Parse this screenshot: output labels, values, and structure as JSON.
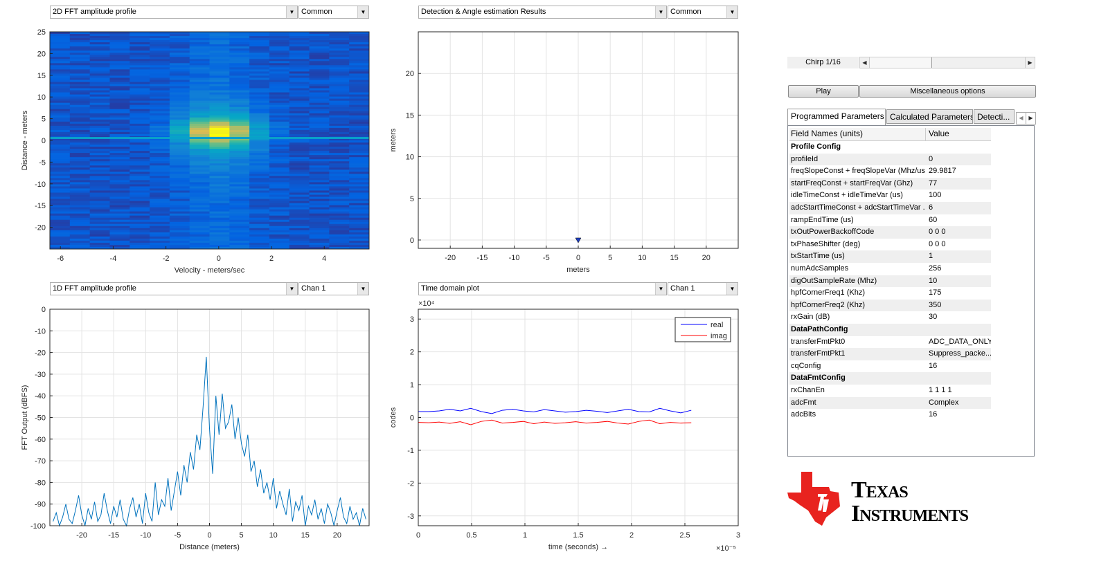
{
  "plots": {
    "p1": {
      "select": "2D FFT amplitude profile",
      "option": "Common"
    },
    "p2": {
      "select": "Detection & Angle estimation Results",
      "option": "Common"
    },
    "p3": {
      "select": "1D FFT amplitude profile",
      "option": "Chan 1"
    },
    "p4": {
      "select": "Time domain plot",
      "option": "Chan 1"
    }
  },
  "controls": {
    "chirp_label": "Chirp 1/16",
    "chirp_value": 1,
    "chirp_total": 16,
    "play": "Play",
    "misc": "Miscellaneous options"
  },
  "tabs": [
    "Programmed Parameters",
    "Calculated Parameters",
    "Detecti..."
  ],
  "table": {
    "headers": [
      "Field Names    (units)",
      "Value"
    ],
    "rows": [
      {
        "name": "Profile Config",
        "value": "",
        "section": true
      },
      {
        "name": "profileId",
        "value": "0"
      },
      {
        "name": "freqSlopeConst + freqSlopeVar (Mhz/us)",
        "value": "29.9817"
      },
      {
        "name": "startFreqConst + startFreqVar (Ghz)",
        "value": "77"
      },
      {
        "name": "idleTimeConst + idleTimeVar (us)",
        "value": "100"
      },
      {
        "name": "adcStartTimeConst + adcStartTimeVar ...",
        "value": "6"
      },
      {
        "name": "rampEndTime (us)",
        "value": "60"
      },
      {
        "name": "txOutPowerBackoffCode",
        "value": "0 0 0"
      },
      {
        "name": "txPhaseShifter (deg)",
        "value": "0 0 0"
      },
      {
        "name": "txStartTime (us)",
        "value": "1"
      },
      {
        "name": "numAdcSamples",
        "value": "256"
      },
      {
        "name": "digOutSampleRate (Mhz)",
        "value": "10"
      },
      {
        "name": "hpfCornerFreq1 (Khz)",
        "value": "175"
      },
      {
        "name": "hpfCornerFreq2 (Khz)",
        "value": "350"
      },
      {
        "name": "rxGain (dB)",
        "value": "30"
      },
      {
        "name": "DataPathConfig",
        "value": "",
        "section": true
      },
      {
        "name": "transferFmtPkt0",
        "value": "ADC_DATA_ONLY"
      },
      {
        "name": "transferFmtPkt1",
        "value": "Suppress_packe..."
      },
      {
        "name": "cqConfig",
        "value": "16"
      },
      {
        "name": "DataFmtConfig",
        "value": "",
        "section": true
      },
      {
        "name": "rxChanEn",
        "value": "1 1 1 1"
      },
      {
        "name": "adcFmt",
        "value": "Complex"
      },
      {
        "name": "adcBits",
        "value": "16"
      }
    ]
  },
  "logo": {
    "line1": "Texas",
    "line2": "Instruments",
    "color": "#e8231f"
  },
  "chart_data": [
    {
      "type": "heatmap",
      "title": "2D FFT amplitude profile",
      "xlabel": "Velocity - meters/sec",
      "ylabel": "Distance - meters",
      "xlim": [
        -6.4,
        5.7
      ],
      "ylim": [
        -25,
        25
      ],
      "xticks": [
        "-6",
        "-4",
        "-2",
        "0",
        "2",
        "4"
      ],
      "yticks": [
        "25",
        "20",
        "15",
        "10",
        "5",
        "0",
        "-5",
        "-10",
        "-15",
        "-20"
      ],
      "peak": {
        "velocity": 0,
        "distance": 1.5
      }
    },
    {
      "type": "scatter",
      "title": "Detection & Angle estimation Results",
      "xlabel": "meters",
      "ylabel": "meters",
      "xlim": [
        -25,
        25
      ],
      "ylim": [
        -1,
        25
      ],
      "xticks": [
        "-20",
        "-15",
        "-10",
        "-5",
        "0",
        "5",
        "10",
        "15",
        "20"
      ],
      "yticks": [
        "0",
        "5",
        "10",
        "15",
        "20"
      ],
      "points": [
        [
          0,
          0
        ]
      ]
    },
    {
      "type": "line",
      "title": "1D FFT amplitude profile",
      "xlabel": "Distance (meters)",
      "ylabel": "FFT Output (dBFS)",
      "xlim": [
        -25,
        25
      ],
      "ylim": [
        -100,
        0
      ],
      "xticks": [
        "-20",
        "-15",
        "-10",
        "-5",
        "0",
        "5",
        "10",
        "15",
        "20"
      ],
      "yticks": [
        "0",
        "-10",
        "-20",
        "-30",
        "-40",
        "-50",
        "-60",
        "-70",
        "-80",
        "-90",
        "-100"
      ],
      "x_start": -24.5,
      "x_step": 0.5,
      "values": [
        -98,
        -94,
        -100,
        -96,
        -90,
        -97,
        -99,
        -93,
        -86,
        -95,
        -100,
        -92,
        -97,
        -89,
        -98,
        -95,
        -85,
        -93,
        -99,
        -91,
        -96,
        -88,
        -97,
        -100,
        -92,
        -87,
        -96,
        -90,
        -99,
        -85,
        -94,
        -98,
        -80,
        -95,
        -88,
        -91,
        -78,
        -93,
        -84,
        -75,
        -86,
        -72,
        -80,
        -66,
        -74,
        -58,
        -65,
        -45,
        -22,
        -55,
        -76,
        -40,
        -58,
        -39,
        -55,
        -52,
        -44,
        -60,
        -50,
        -62,
        -68,
        -58,
        -75,
        -70,
        -82,
        -74,
        -85,
        -80,
        -88,
        -78,
        -92,
        -84,
        -90,
        -95,
        -83,
        -98,
        -89,
        -93,
        -86,
        -100,
        -91,
        -95,
        -88,
        -97,
        -92,
        -99,
        -90,
        -94,
        -100,
        -93,
        -87,
        -96,
        -99,
        -91,
        -97,
        -94,
        -100,
        -92,
        -97
      ]
    },
    {
      "type": "line",
      "title": "Time domain plot",
      "xlabel": "time  (seconds) →",
      "ylabel": "codes",
      "xlim": [
        0,
        3
      ],
      "ylim": [
        -3.3,
        3.3
      ],
      "x_exponent": "×10⁻⁵",
      "y_exponent": "×10⁴",
      "xticks": [
        "0",
        "0.5",
        "1",
        "1.5",
        "2",
        "2.5",
        "3"
      ],
      "yticks": [
        "3",
        "2",
        "1",
        "0",
        "-1",
        "-2",
        "-3"
      ],
      "legend": {
        "position": "top-right",
        "entries": [
          "real",
          "imag"
        ]
      },
      "series": [
        {
          "name": "real",
          "color": "#0000ff",
          "x_end": 2.56,
          "values": [
            0.18,
            0.18,
            0.2,
            0.25,
            0.2,
            0.28,
            0.18,
            0.12,
            0.22,
            0.25,
            0.2,
            0.17,
            0.24,
            0.2,
            0.16,
            0.18,
            0.22,
            0.19,
            0.15,
            0.2,
            0.25,
            0.18,
            0.17,
            0.28,
            0.2,
            0.14,
            0.22
          ]
        },
        {
          "name": "imag",
          "color": "#ff0000",
          "x_end": 2.56,
          "values": [
            -0.15,
            -0.16,
            -0.14,
            -0.18,
            -0.13,
            -0.22,
            -0.12,
            -0.08,
            -0.17,
            -0.15,
            -0.12,
            -0.19,
            -0.14,
            -0.18,
            -0.16,
            -0.13,
            -0.17,
            -0.15,
            -0.12,
            -0.17,
            -0.2,
            -0.12,
            -0.08,
            -0.19,
            -0.15,
            -0.17,
            -0.16
          ]
        }
      ]
    }
  ]
}
